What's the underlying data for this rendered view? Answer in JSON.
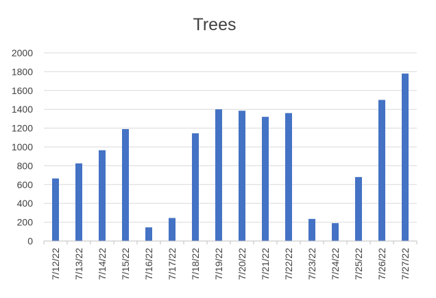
{
  "chart_data": {
    "type": "bar",
    "title": "Trees",
    "xlabel": "",
    "ylabel": "",
    "categories": [
      "7/12/22",
      "7/13/22",
      "7/14/22",
      "7/15/22",
      "7/16/22",
      "7/17/22",
      "7/18/22",
      "7/19/22",
      "7/20/22",
      "7/21/22",
      "7/22/22",
      "7/23/22",
      "7/24/22",
      "7/25/22",
      "7/26/22",
      "7/27/22"
    ],
    "values": [
      665,
      825,
      965,
      1190,
      145,
      245,
      1145,
      1400,
      1385,
      1320,
      1360,
      235,
      190,
      680,
      1500,
      1780
    ],
    "ylim": [
      0,
      2000
    ],
    "yticks": [
      0,
      200,
      400,
      600,
      800,
      1000,
      1200,
      1400,
      1600,
      1800,
      2000
    ],
    "grid": true,
    "legend": "none",
    "colors": {
      "bar": "#4472C4",
      "grid": "#D9D9D9",
      "text": "#404040",
      "axis": "#BFBFBF"
    }
  }
}
